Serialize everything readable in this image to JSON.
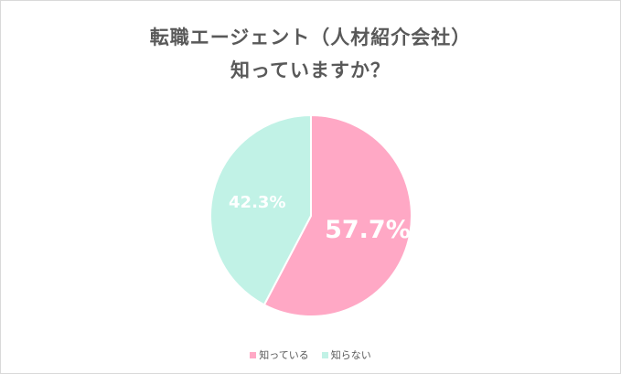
{
  "chart_data": {
    "type": "pie",
    "title": [
      "転職エージェント（人材紹介会社）",
      "知っていますか？"
    ],
    "categories": [
      "知っている",
      "知らない"
    ],
    "values": [
      57.7,
      42.3
    ],
    "labels": [
      "57.7%",
      "42.3%"
    ],
    "colors": [
      "#ffa8c5",
      "#c1f2e6"
    ],
    "legend_position": "bottom"
  }
}
